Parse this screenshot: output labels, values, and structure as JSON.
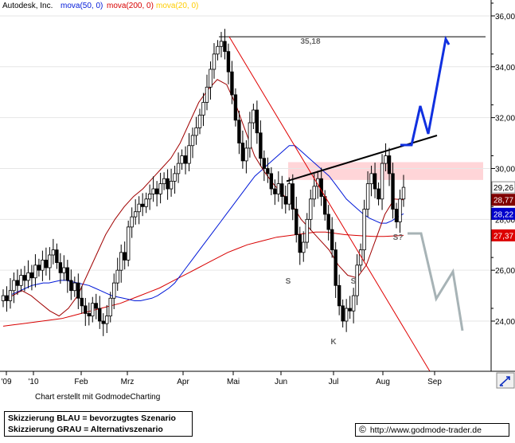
{
  "chart_data": {
    "type": "candlestick",
    "title": "Autodesk, Inc.",
    "indicators": [
      {
        "label": "mova(50, 0)",
        "color": "#0018d8"
      },
      {
        "label": "mova(200, 0)",
        "color": "#d80000"
      },
      {
        "label": "mova(20, 0)",
        "color": "#ffcc00"
      }
    ],
    "x_ticks": [
      "'09",
      "'10",
      "Feb",
      "Mrz",
      "Apr",
      "Mai",
      "Jun",
      "Jul",
      "Aug",
      "Sep"
    ],
    "y_ticks": [
      "24,00",
      "26,00",
      "28,00",
      "30,00",
      "32,00",
      "34,00",
      "36,00"
    ],
    "ylim": [
      22.8,
      36.4
    ],
    "price_tags": [
      {
        "label": "29,26",
        "value": 29.26,
        "bg": "#ffffff",
        "fg": "#000000"
      },
      {
        "label": "28,77",
        "value": 28.77,
        "bg": "#800000",
        "fg": "#ffffff"
      },
      {
        "label": "28,22",
        "value": 28.22,
        "bg": "#0000cc",
        "fg": "#ffffff"
      },
      {
        "label": "27,37",
        "value": 27.37,
        "bg": "#dd0000",
        "fg": "#ffffff"
      }
    ],
    "annotations": [
      {
        "label": "35,18",
        "value": 35.18
      },
      {
        "label": "S"
      },
      {
        "label": "S"
      },
      {
        "label": "K"
      },
      {
        "label": "S?"
      }
    ],
    "resistance_zone": [
      29.55,
      30.25
    ],
    "close_series": [
      25.0,
      24.8,
      25.2,
      25.6,
      25.4,
      25.8,
      25.6,
      25.9,
      25.7,
      26.2,
      26.0,
      26.4,
      26.1,
      26.6,
      26.8,
      26.3,
      25.9,
      26.1,
      25.6,
      25.2,
      25.5,
      24.9,
      24.6,
      24.3,
      24.2,
      24.7,
      24.5,
      24.0,
      23.9,
      24.2,
      24.9,
      25.5,
      26.0,
      26.7,
      26.4,
      27.7,
      28.1,
      28.3,
      28.6,
      28.5,
      28.8,
      29.0,
      29.2,
      29.0,
      29.4,
      29.6,
      29.2,
      29.5,
      29.8,
      30.2,
      30.5,
      30.2,
      30.9,
      31.3,
      31.6,
      32.1,
      32.6,
      33.2,
      33.9,
      34.5,
      34.8,
      35.0,
      34.6,
      33.8,
      32.9,
      31.9,
      31.0,
      30.3,
      30.8,
      31.8,
      32.3,
      31.4,
      30.4,
      30.0,
      29.8,
      29.2,
      29.0,
      29.4,
      28.9,
      28.6,
      29.4,
      28.4,
      27.4,
      26.7,
      27.1,
      28.0,
      28.8,
      29.3,
      29.6,
      28.9,
      28.2,
      27.6,
      26.8,
      25.4,
      24.6,
      24.0,
      24.5,
      24.4,
      25.0,
      26.2,
      26.8,
      28.4,
      29.4,
      29.8,
      29.2,
      28.8,
      30.2,
      30.5,
      29.8,
      28.4,
      27.9,
      28.8,
      29.26
    ],
    "sma50": [
      24.9,
      25.0,
      25.1,
      25.2,
      25.3,
      25.4,
      25.45,
      25.5,
      25.5,
      25.55,
      25.6,
      25.6,
      25.55,
      25.5,
      25.45,
      25.4,
      25.3,
      25.2,
      25.1,
      25.0,
      24.95,
      24.9,
      24.85,
      24.8,
      24.8,
      24.85,
      24.9,
      25.0,
      25.15,
      25.3,
      25.5,
      25.8,
      26.1,
      26.4,
      26.7,
      27.0,
      27.3,
      27.6,
      27.9,
      28.2,
      28.5,
      28.8,
      29.1,
      29.4,
      29.7,
      29.9,
      30.1,
      30.3,
      30.5,
      30.7,
      30.9,
      30.9,
      30.7,
      30.5,
      30.3,
      30.1,
      29.9,
      29.7,
      29.4,
      29.1,
      28.8,
      28.6,
      28.4,
      28.2,
      28.05,
      27.95,
      27.85,
      27.85,
      27.95,
      28.1,
      28.22
    ],
    "sma200": [
      23.8,
      23.85,
      23.9,
      23.95,
      24.0,
      24.05,
      24.1,
      24.2,
      24.3,
      24.4,
      24.5,
      24.6,
      24.7,
      24.85,
      25.0,
      25.15,
      25.3,
      25.5,
      25.7,
      25.9,
      26.1,
      26.3,
      26.5,
      26.7,
      26.85,
      27.0,
      27.1,
      27.2,
      27.3,
      27.35,
      27.4,
      27.45,
      27.5,
      27.5,
      27.45,
      27.4,
      27.37,
      27.35,
      27.33,
      27.33,
      27.35,
      27.37
    ],
    "sma20": [
      24.8,
      25.0,
      25.2,
      25.0,
      24.7,
      24.4,
      24.2,
      24.5,
      25.0,
      25.8,
      26.6,
      27.4,
      28.0,
      28.5,
      28.9,
      29.2,
      29.6,
      30.0,
      30.4,
      31.0,
      31.8,
      32.6,
      33.1,
      33.5,
      33.3,
      32.5,
      31.5,
      30.5,
      29.9,
      29.4,
      29.0,
      28.6,
      28.0,
      27.6,
      27.2,
      26.8,
      26.2,
      25.8,
      25.7,
      26.2,
      27.2,
      28.2,
      28.8,
      28.77
    ]
  },
  "footer": {
    "credit": "Chart erstellt mit GodmodeCharting",
    "legend_line1": "Skizzierung BLAU = bevorzugtes Szenario",
    "legend_line2": "Skizzierung GRAU = Alternativszenario",
    "copyright": "©",
    "url": "http://www.godmode-trader.de"
  }
}
